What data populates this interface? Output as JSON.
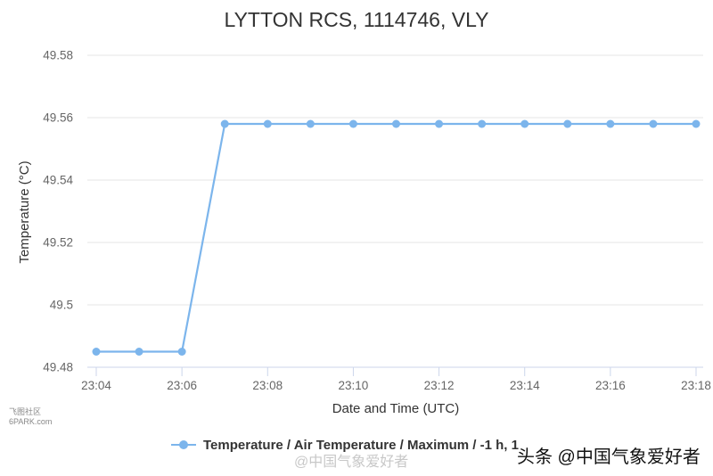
{
  "chart_data": {
    "type": "line",
    "title": "LYTTON RCS, 1114746, VLY",
    "xlabel": "Date and Time (UTC)",
    "ylabel": "Temperature (°C)",
    "x": [
      "23:04",
      "23:05",
      "23:06",
      "23:07",
      "23:08",
      "23:09",
      "23:10",
      "23:11",
      "23:12",
      "23:13",
      "23:14",
      "23:15",
      "23:16",
      "23:17",
      "23:18"
    ],
    "x_tick_labels": [
      "23:04",
      "23:06",
      "23:08",
      "23:10",
      "23:12",
      "23:14",
      "23:16",
      "23:18"
    ],
    "y_tick_labels": [
      "49.48",
      "49.5",
      "49.52",
      "49.54",
      "49.56",
      "49.58"
    ],
    "ylim": [
      49.48,
      49.58
    ],
    "grid": true,
    "legend_position": "bottom",
    "series": [
      {
        "name": "Temperature / Air Temperature / Maximum / -1 h, 1",
        "color": "#7cb5ec",
        "values": [
          49.485,
          49.485,
          49.485,
          49.558,
          49.558,
          49.558,
          49.558,
          49.558,
          49.558,
          49.558,
          49.558,
          49.558,
          49.558,
          49.558,
          49.558
        ]
      }
    ]
  },
  "watermarks": {
    "left_line1": "飞图社区",
    "left_line2": "6PARK.com",
    "middle": "@中国气象爱好者",
    "right": "头条 @中国气象爱好者"
  }
}
